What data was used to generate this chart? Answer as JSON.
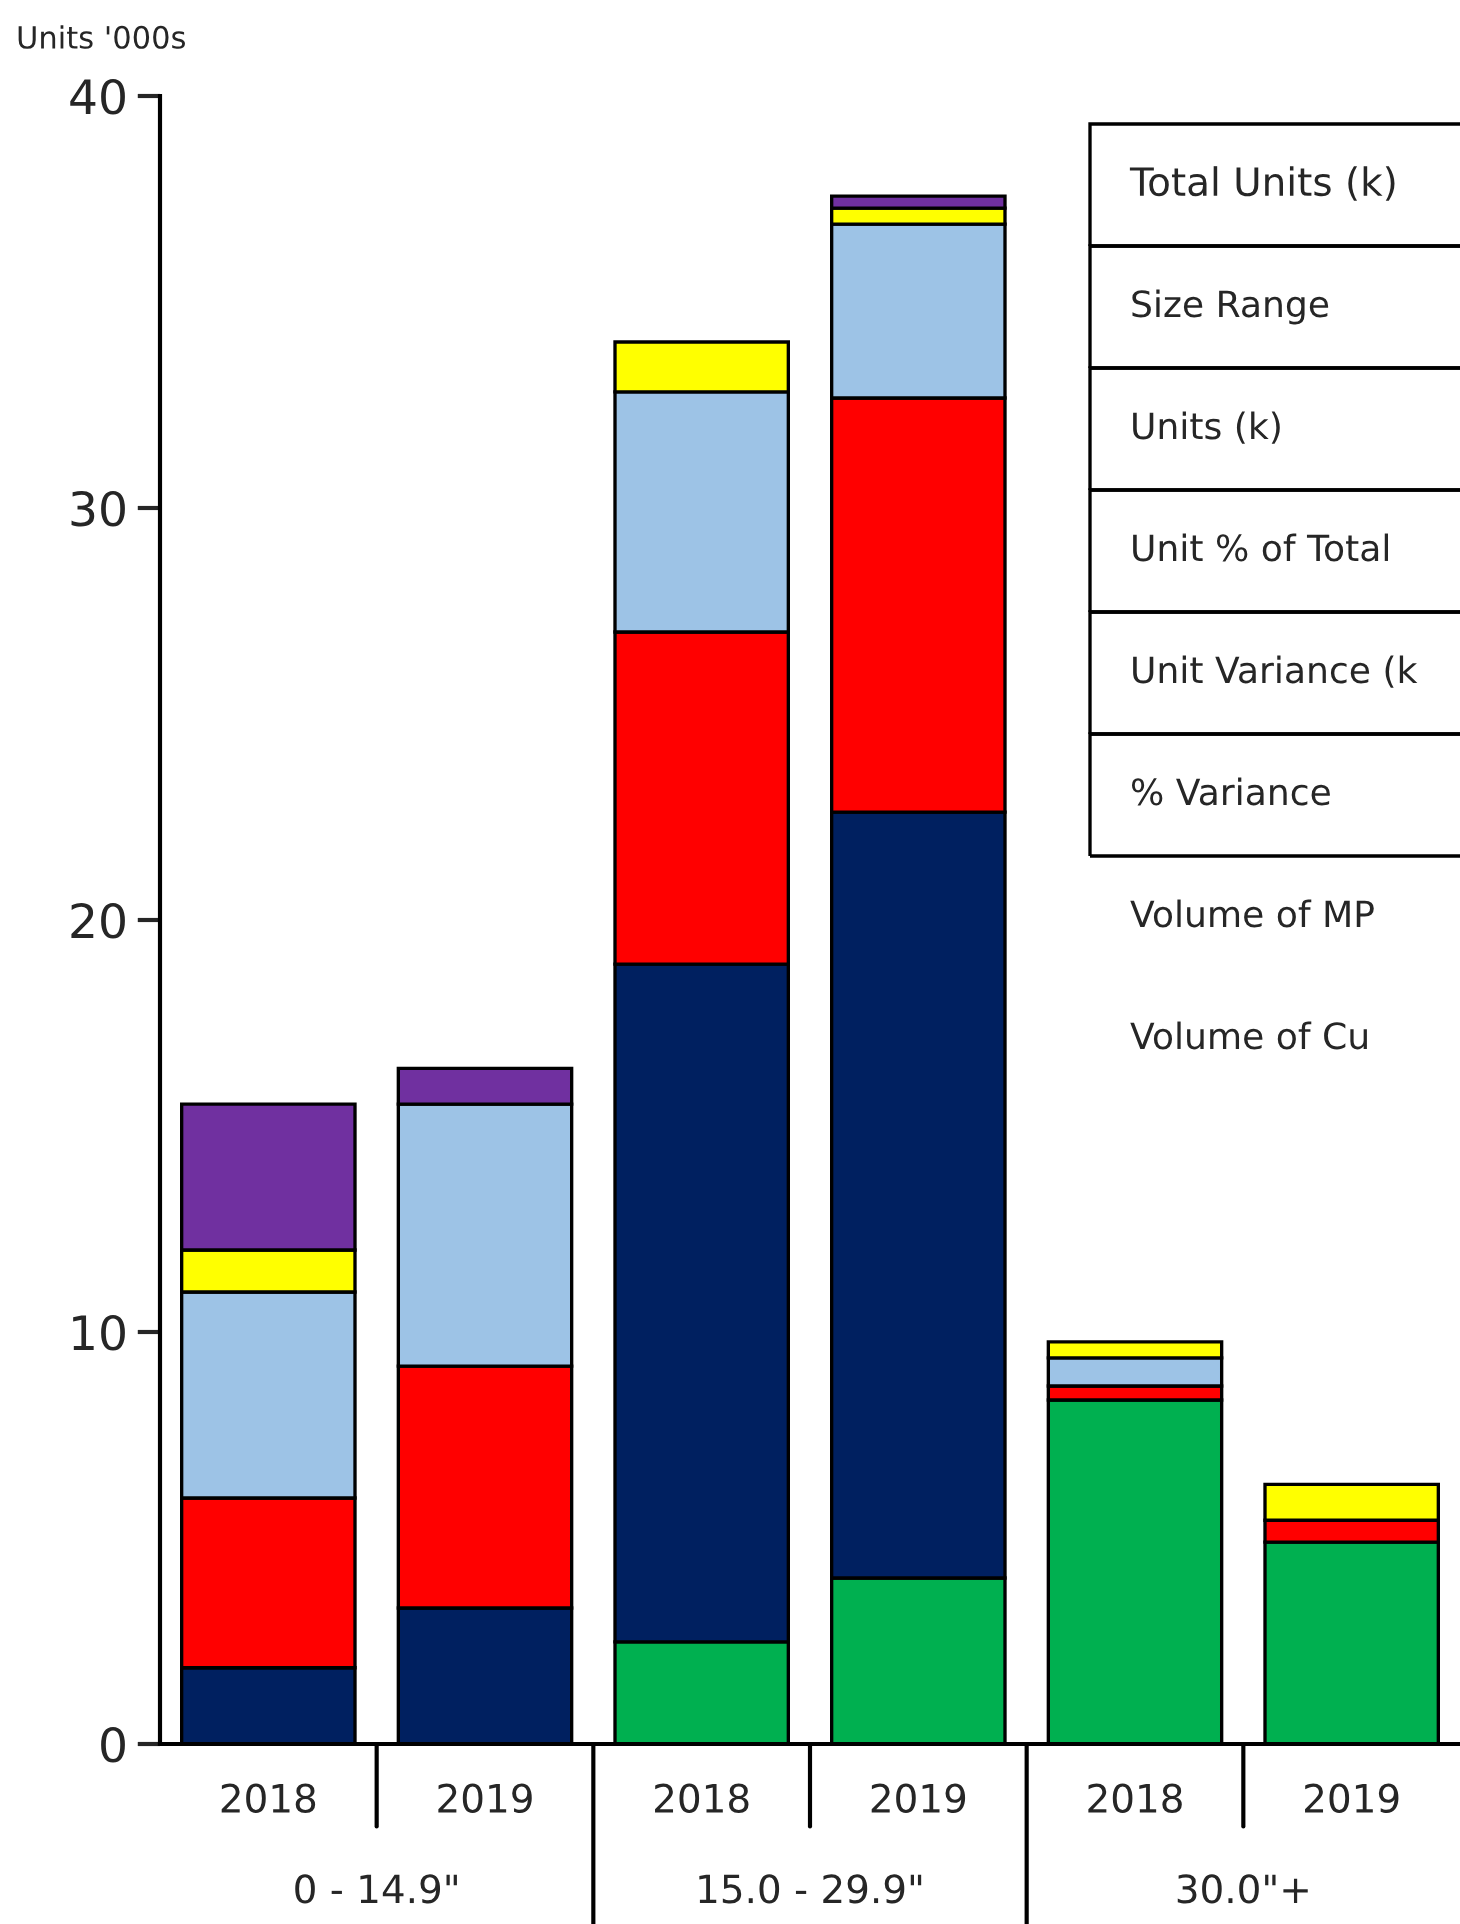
{
  "chart_data": {
    "type": "bar",
    "stacked": true,
    "ylabel": "Units '000s",
    "categories": [
      "2018",
      "2019",
      "2018",
      "2019",
      "2018",
      "2019"
    ],
    "series": [
      {
        "color": "#00b050",
        "values": [
          0,
          0,
          2.48,
          4.03,
          8.35,
          4.9
        ]
      },
      {
        "color": "#002060",
        "values": [
          1.85,
          3.3,
          16.45,
          18.59,
          0,
          0
        ]
      },
      {
        "color": "#ff0000",
        "values": [
          4.12,
          5.87,
          8.06,
          10.05,
          0.34,
          0.53
        ]
      },
      {
        "color": "#9dc3e6",
        "values": [
          5.0,
          6.36,
          5.83,
          4.22,
          0.68,
          0
        ]
      },
      {
        "color": "#ffff00",
        "values": [
          1.02,
          0,
          1.21,
          0.39,
          0.39,
          0.87
        ]
      },
      {
        "color": "#7030a0",
        "values": [
          3.54,
          0.87,
          0,
          0.29,
          0,
          0
        ]
      }
    ],
    "ylim": [
      0,
      40
    ],
    "yticks": [
      0,
      10,
      20,
      30,
      40
    ],
    "grid": false,
    "legend": false,
    "annotations": [
      "0 - 14.9\"",
      "15.0 - 29.9\"",
      "30.0\"+",
      "Total Units (k)",
      "Size Range",
      "Units (k)",
      "Unit % of Total",
      "Unit Variance (k",
      "% Variance",
      "Volume of MP",
      "Volume of Cu"
    ]
  }
}
